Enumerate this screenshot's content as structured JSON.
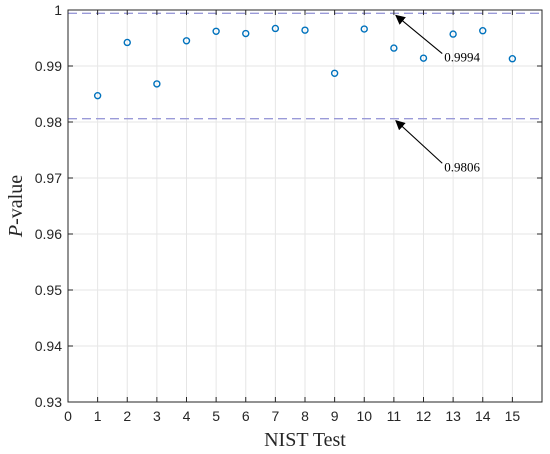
{
  "chart_data": {
    "type": "scatter",
    "xlabel": "NIST Test",
    "ylabel_italic": "P",
    "ylabel_rest": "-value",
    "xlim": [
      0,
      16
    ],
    "ylim": [
      0.93,
      1.0
    ],
    "xticks": [
      0,
      1,
      2,
      3,
      4,
      5,
      6,
      7,
      8,
      9,
      10,
      11,
      12,
      13,
      14,
      15
    ],
    "yticks": [
      "0.93",
      "0.94",
      "0.95",
      "0.96",
      "0.97",
      "0.98",
      "0.99",
      "1"
    ],
    "ytick_values": [
      0.93,
      0.94,
      0.95,
      0.96,
      0.97,
      0.98,
      0.99,
      1.0
    ],
    "grid": true,
    "marker_color": "#0072BD",
    "reference_line_color": "#9A9AD8",
    "series": [
      {
        "x": [
          1,
          2,
          3,
          4,
          5,
          6,
          7,
          8,
          9,
          10,
          11,
          12,
          13,
          14,
          15
        ],
        "y": [
          0.9847,
          0.9942,
          0.9868,
          0.9945,
          0.9962,
          0.9958,
          0.9967,
          0.9964,
          0.9887,
          0.9966,
          0.9932,
          0.9914,
          0.9957,
          0.9963,
          0.9913
        ]
      }
    ],
    "reference_lines": [
      {
        "y": 0.9994,
        "label": "0.9994"
      },
      {
        "y": 0.9806,
        "label": "0.9806"
      }
    ],
    "annotations": [
      {
        "text": "0.9994",
        "target_x": 11.0,
        "target_y": 0.9994,
        "text_x": 12.7,
        "text_y": 0.9908
      },
      {
        "text": "0.9806",
        "target_x": 11.0,
        "target_y": 0.9806,
        "text_x": 12.7,
        "text_y": 0.9712
      }
    ]
  }
}
